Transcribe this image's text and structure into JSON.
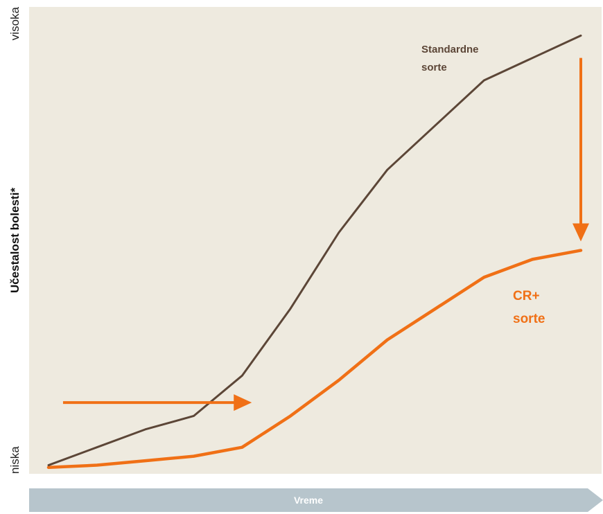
{
  "colors": {
    "plot_bg": "#EEEADF",
    "standard": "#5C4637",
    "cr_plus": "#F07016",
    "time_bar": "#B7C5CC"
  },
  "chart_data": {
    "type": "line",
    "xlabel": "Vreme",
    "ylabel": "Učestalost bolesti*",
    "y_tick_labels": {
      "high": "visoka",
      "low": "niska"
    },
    "x": [
      0,
      1,
      2,
      3,
      4,
      5,
      6,
      7,
      8,
      9,
      10,
      11
    ],
    "ylim": [
      0,
      100
    ],
    "grid": false,
    "series": [
      {
        "name": "Standardne sorte",
        "label_lines": [
          "Standardne",
          "sorte"
        ],
        "values": [
          1,
          5,
          9,
          12,
          21,
          36,
          53,
          67,
          77,
          87,
          92,
          97
        ]
      },
      {
        "name": "CR+ sorte",
        "label_lines": [
          "CR+",
          "sorte"
        ],
        "values": [
          0.5,
          1,
          2,
          3,
          5,
          12,
          20,
          29,
          36,
          43,
          47,
          49
        ]
      }
    ],
    "annotations": [
      {
        "type": "horizontal-arrow",
        "meaning": "delay of disease onset",
        "y": 15,
        "x_from": 0.3,
        "x_to": 4.2
      },
      {
        "type": "vertical-arrow",
        "meaning": "reduction of disease incidence",
        "x": 11,
        "y_from": 92,
        "y_to": 51
      }
    ]
  }
}
